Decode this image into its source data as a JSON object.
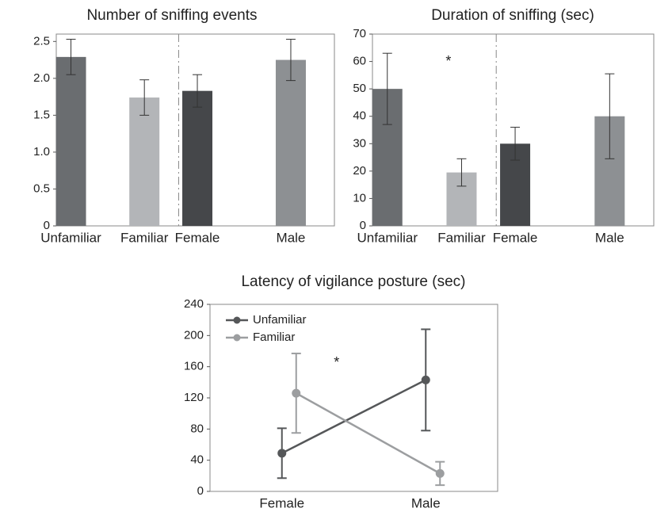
{
  "chart_data": [
    {
      "type": "bar",
      "title": "Number of sniffing events",
      "categories": [
        "Unfamiliar",
        "Familiar",
        "Female",
        "Male"
      ],
      "values": [
        2.29,
        1.74,
        1.83,
        2.25
      ],
      "errors": [
        0.24,
        0.24,
        0.22,
        0.28
      ],
      "colors": [
        "#6a6d70",
        "#b3b5b8",
        "#45474a",
        "#8d9093"
      ],
      "ylim": [
        0,
        2.6
      ],
      "yticks": [
        0,
        0.5,
        {
          "value": 1,
          "label": "1.0"
        },
        1.5,
        {
          "value": 2,
          "label": "2.0"
        },
        2.5
      ]
    },
    {
      "type": "bar",
      "title": "Duration of sniffing (sec)",
      "categories": [
        "Unfamiliar",
        "Familiar",
        "Female",
        "Male"
      ],
      "values": [
        50,
        19.5,
        30,
        40
      ],
      "errors": [
        13,
        5,
        6,
        15.5
      ],
      "colors": [
        "#6a6d70",
        "#b3b5b8",
        "#45474a",
        "#8d9093"
      ],
      "ylim": [
        0,
        70
      ],
      "yticks": [
        0,
        10,
        20,
        30,
        40,
        50,
        60,
        70
      ],
      "annotation": "*"
    },
    {
      "type": "line",
      "title": "Latency of vigilance posture (sec)",
      "categories": [
        "Female",
        "Male"
      ],
      "series": [
        {
          "name": "Unfamiliar",
          "color": "#555759",
          "values": [
            49,
            143
          ],
          "errors": [
            32,
            65
          ]
        },
        {
          "name": "Familiar",
          "color": "#9c9ea0",
          "values": [
            126,
            23
          ],
          "errors": [
            51,
            15
          ]
        }
      ],
      "ylim": [
        0,
        240
      ],
      "yticks": [
        0,
        40,
        80,
        120,
        160,
        200,
        240
      ],
      "legend": "upper left",
      "annotation": "*"
    }
  ]
}
